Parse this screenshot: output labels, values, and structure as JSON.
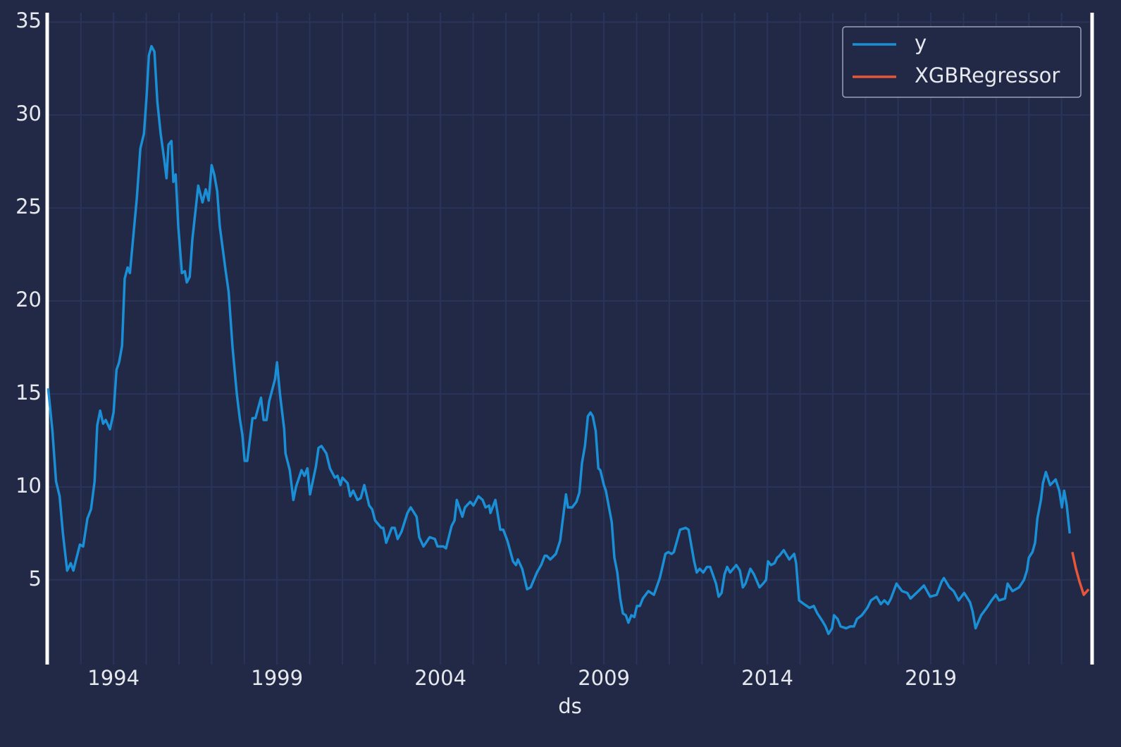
{
  "chart_data": {
    "type": "line",
    "xlabel": "ds",
    "xlim": [
      1991.97,
      2023.87
    ],
    "xticks": [
      1994,
      1999,
      2004,
      2009,
      2014,
      2019
    ],
    "xminorticks": [
      1992,
      1993,
      1994,
      1995,
      1996,
      1997,
      1998,
      1999,
      2000,
      2001,
      2002,
      2003,
      2004,
      2005,
      2006,
      2007,
      2008,
      2009,
      2010,
      2011,
      2012,
      2013,
      2014,
      2015,
      2016,
      2017,
      2018,
      2019,
      2020,
      2021,
      2022,
      2023
    ],
    "ylim": [
      0.45,
      35.5
    ],
    "yticks": [
      5,
      10,
      15,
      20,
      25,
      30,
      35
    ],
    "grid": true,
    "legend": "upper right",
    "series": [
      {
        "name": "y",
        "color": "#1a8fd6",
        "x": [
          1992.0,
          1992.13,
          1992.24,
          1992.35,
          1992.45,
          1992.58,
          1992.69,
          1992.77,
          1992.97,
          1993.07,
          1993.2,
          1993.31,
          1993.42,
          1993.5,
          1993.59,
          1993.68,
          1993.76,
          1993.89,
          1994.0,
          1994.09,
          1994.17,
          1994.26,
          1994.34,
          1994.43,
          1994.5,
          1994.71,
          1994.82,
          1994.93,
          1995.01,
          1995.08,
          1995.16,
          1995.25,
          1995.34,
          1995.44,
          1995.55,
          1995.62,
          1995.68,
          1995.77,
          1995.83,
          1995.9,
          1995.98,
          1996.09,
          1996.18,
          1996.24,
          1996.33,
          1996.41,
          1996.59,
          1996.72,
          1996.82,
          1996.91,
          1997.0,
          1997.08,
          1997.17,
          1997.25,
          1997.43,
          1997.52,
          1997.64,
          1997.77,
          1997.86,
          1997.94,
          1998.01,
          1998.09,
          1998.25,
          1998.34,
          1998.51,
          1998.59,
          1998.68,
          1998.76,
          1998.94,
          1999.0,
          1999.09,
          1999.22,
          1999.26,
          1999.39,
          1999.5,
          1999.58,
          1999.75,
          1999.84,
          1999.93,
          2000.01,
          2000.19,
          2000.27,
          2000.36,
          2000.51,
          2000.62,
          2000.77,
          2000.85,
          2000.94,
          2001.0,
          2001.16,
          2001.24,
          2001.33,
          2001.46,
          2001.56,
          2001.67,
          2001.82,
          2001.91,
          2002.0,
          2002.19,
          2002.25,
          2002.34,
          2002.51,
          2002.6,
          2002.69,
          2002.81,
          2002.99,
          2003.09,
          2003.27,
          2003.35,
          2003.48,
          2003.67,
          2003.83,
          2003.91,
          2004.09,
          2004.17,
          2004.34,
          2004.43,
          2004.5,
          2004.67,
          2004.75,
          2004.91,
          2005.01,
          2005.16,
          2005.29,
          2005.38,
          2005.49,
          2005.53,
          2005.68,
          2005.83,
          2005.92,
          2006.05,
          2006.22,
          2006.31,
          2006.37,
          2006.5,
          2006.65,
          2006.76,
          2006.95,
          2007.08,
          2007.19,
          2007.25,
          2007.36,
          2007.53,
          2007.66,
          2007.84,
          2007.9,
          2008.03,
          2008.16,
          2008.25,
          2008.33,
          2008.42,
          2008.51,
          2008.59,
          2008.66,
          2008.75,
          2008.83,
          2008.89,
          2009.0,
          2009.06,
          2009.24,
          2009.32,
          2009.41,
          2009.5,
          2009.58,
          2009.67,
          2009.75,
          2009.84,
          2009.93,
          2010.01,
          2010.1,
          2010.19,
          2010.36,
          2010.53,
          2010.71,
          2010.79,
          2010.88,
          2010.97,
          2011.07,
          2011.14,
          2011.22,
          2011.33,
          2011.5,
          2011.59,
          2011.76,
          2011.84,
          2011.93,
          2012.04,
          2012.15,
          2012.25,
          2012.43,
          2012.51,
          2012.6,
          2012.69,
          2012.77,
          2012.86,
          2013.05,
          2013.16,
          2013.25,
          2013.33,
          2013.48,
          2013.59,
          2013.76,
          2013.87,
          2013.96,
          2014.02,
          2014.11,
          2014.22,
          2014.3,
          2014.37,
          2014.5,
          2014.67,
          2014.82,
          2014.88,
          2014.97,
          2015.12,
          2015.29,
          2015.42,
          2015.53,
          2015.68,
          2015.78,
          2015.87,
          2015.98,
          2016.04,
          2016.15,
          2016.24,
          2016.41,
          2016.54,
          2016.65,
          2016.74,
          2016.89,
          2017.06,
          2017.17,
          2017.34,
          2017.47,
          2017.58,
          2017.69,
          2017.78,
          2017.95,
          2018.12,
          2018.28,
          2018.38,
          2018.62,
          2018.79,
          2018.98,
          2019.18,
          2019.33,
          2019.4,
          2019.57,
          2019.7,
          2019.85,
          2020.02,
          2020.2,
          2020.28,
          2020.37,
          2020.54,
          2020.71,
          2020.86,
          2020.99,
          2021.09,
          2021.27,
          2021.35,
          2021.5,
          2021.7,
          2021.85,
          2021.94,
          2022.0,
          2022.11,
          2022.19,
          2022.26,
          2022.37,
          2022.43,
          2022.52,
          2022.65,
          2022.82,
          2022.93,
          2023.01,
          2023.08,
          2023.16,
          2023.25
        ],
        "values": [
          15.3,
          13,
          10.3,
          9.5,
          7.5,
          5.5,
          5.9,
          5.5,
          6.9,
          6.8,
          8.3,
          8.8,
          10.3,
          13.3,
          14.1,
          13.4,
          13.6,
          13.1,
          14,
          16.3,
          16.7,
          17.6,
          21.2,
          21.8,
          21.5,
          25.5,
          28.2,
          29,
          31,
          33.2,
          33.7,
          33.4,
          30.7,
          29,
          27.6,
          26.6,
          28.4,
          28.6,
          26.4,
          26.8,
          24,
          21.5,
          21.6,
          21,
          21.3,
          23.3,
          26.2,
          25.3,
          26,
          25.4,
          27.3,
          26.8,
          25.9,
          24,
          21.6,
          20.5,
          17.5,
          15,
          13.7,
          12.8,
          11.4,
          11.4,
          13.7,
          13.7,
          14.8,
          13.6,
          13.6,
          14.6,
          15.8,
          16.7,
          15,
          13.1,
          11.8,
          10.9,
          9.3,
          10,
          10.9,
          10.6,
          11,
          9.6,
          11.1,
          12.1,
          12.2,
          11.8,
          11,
          10.5,
          10.6,
          10.1,
          10.5,
          10.2,
          9.5,
          9.8,
          9.3,
          9.4,
          10.1,
          9,
          8.8,
          8.2,
          7.8,
          7.8,
          7,
          7.8,
          7.8,
          7.2,
          7.6,
          8.6,
          8.9,
          8.4,
          7.3,
          6.8,
          7.3,
          7.2,
          6.8,
          6.8,
          6.7,
          7.9,
          8.2,
          9.3,
          8.4,
          8.9,
          9.2,
          9,
          9.5,
          9.3,
          8.9,
          9,
          8.6,
          9.3,
          7.7,
          7.7,
          7.1,
          6,
          5.8,
          6.1,
          5.6,
          4.5,
          4.6,
          5.4,
          5.8,
          6.3,
          6.3,
          6.1,
          6.4,
          7.1,
          9.6,
          8.9,
          8.9,
          9.2,
          9.7,
          11.3,
          12.2,
          13.8,
          14,
          13.8,
          13,
          11,
          10.9,
          10.1,
          9.8,
          8.1,
          6.2,
          5.4,
          4,
          3.2,
          3.1,
          2.7,
          3.1,
          3,
          3.6,
          3.6,
          4,
          4.4,
          4.2,
          5.1,
          5.7,
          6.4,
          6.5,
          6.4,
          6.5,
          7,
          7.7,
          7.8,
          7.7,
          6,
          5.4,
          5.6,
          5.4,
          5.7,
          5.7,
          4.8,
          4.1,
          4.3,
          5.3,
          5.7,
          5.4,
          5.8,
          5.5,
          4.6,
          4.8,
          5.6,
          5.3,
          4.6,
          4.8,
          5,
          6,
          5.8,
          5.9,
          6.2,
          6.3,
          6.6,
          6.1,
          6.4,
          5.9,
          3.9,
          3.7,
          3.5,
          3.6,
          3.2,
          2.8,
          2.5,
          2.1,
          2.4,
          3.1,
          2.9,
          2.5,
          2.4,
          2.5,
          2.5,
          2.9,
          3.1,
          3.5,
          3.9,
          4.1,
          3.7,
          3.9,
          3.7,
          4,
          4.8,
          4.4,
          4.3,
          4,
          4.4,
          4.7,
          4.1,
          4.2,
          4.9,
          5.1,
          4.6,
          4.4,
          3.9,
          4.3,
          3.8,
          3.3,
          2.4,
          3.1,
          3.5,
          3.9,
          4.2,
          3.9,
          4,
          4.8,
          4.4,
          4.6,
          5,
          5.5,
          6.2,
          6.5,
          7,
          8.3,
          9.3,
          10.2,
          10.8,
          10.1,
          10.4,
          9.8,
          8.9,
          9.8,
          9,
          7.5
        ]
      },
      {
        "name": "XGBRegressor",
        "color": "#e8563a",
        "x": [
          2023.33,
          2023.44,
          2023.55,
          2023.68,
          2023.83
        ],
        "values": [
          6.5,
          5.6,
          4.9,
          4.2,
          4.5
        ]
      }
    ]
  }
}
